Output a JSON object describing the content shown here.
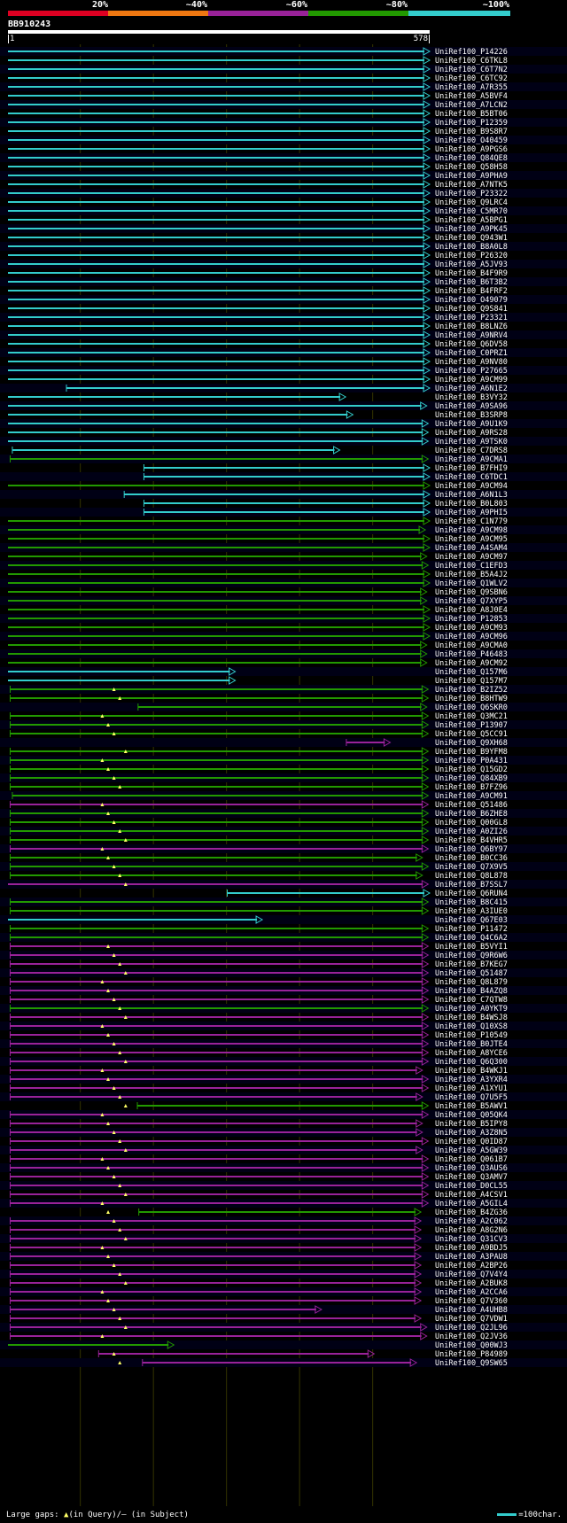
{
  "header": {
    "pct_labels": [
      "20%",
      "~40%",
      "~60%",
      "~80%",
      "~100%"
    ],
    "band_colors": [
      "#dd0022",
      "#ee7711",
      "#992299",
      "#229900",
      "#33cccc"
    ],
    "query_name": "BB910243",
    "ruler_start": "1",
    "ruler_end": "578"
  },
  "footer": {
    "gaps_text": "Large gaps: ",
    "gaps_query": "(in Query)/",
    "gaps_query_symbol": "▲",
    "gaps_subject_symbol": "–",
    "gaps_subject": " (in Subject)",
    "legend_text": "=100char."
  },
  "chart_data": {
    "type": "alignment",
    "query_length": 578,
    "color_by_identity": {
      "~100%": "#33cccc",
      "~80%": "#229900",
      "~60%": "#992299",
      "~40%": "#ee7711",
      "20%": "#dd0022"
    },
    "hits": [
      [
        "UniRef100_P14226",
        1,
        578,
        "c",
        0
      ],
      [
        "UniRef100_C6TKL8",
        1,
        578,
        "c",
        0
      ],
      [
        "UniRef100_C6T7N2",
        1,
        578,
        "c",
        0
      ],
      [
        "UniRef100_C6TC92",
        1,
        578,
        "c",
        0
      ],
      [
        "UniRef100_A7R355",
        1,
        578,
        "c",
        0
      ],
      [
        "UniRef100_A5BVF4",
        1,
        578,
        "c",
        0
      ],
      [
        "UniRef100_A7LCN2",
        1,
        578,
        "c",
        0
      ],
      [
        "UniRef100_B5BT06",
        1,
        578,
        "c",
        0
      ],
      [
        "UniRef100_P12359",
        1,
        578,
        "c",
        0
      ],
      [
        "UniRef100_B9S8R7",
        1,
        578,
        "c",
        0
      ],
      [
        "UniRef100_O40459",
        1,
        578,
        "c",
        0
      ],
      [
        "UniRef100_A9PGS6",
        1,
        578,
        "c",
        0
      ],
      [
        "UniRef100_Q84QE8",
        1,
        578,
        "c",
        0
      ],
      [
        "UniRef100_Q58H58",
        1,
        578,
        "c",
        0
      ],
      [
        "UniRef100_A9PHA9",
        1,
        578,
        "c",
        0
      ],
      [
        "UniRef100_A7NTK5",
        1,
        578,
        "c",
        0
      ],
      [
        "UniRef100_P23322",
        1,
        578,
        "c",
        0
      ],
      [
        "UniRef100_Q9LRC4",
        1,
        578,
        "c",
        0
      ],
      [
        "UniRef100_C5MR70",
        1,
        578,
        "c",
        0
      ],
      [
        "UniRef100_A5BPG1",
        1,
        578,
        "c",
        0
      ],
      [
        "UniRef100_A9PK45",
        1,
        578,
        "c",
        0
      ],
      [
        "UniRef100_Q943W1",
        1,
        578,
        "c",
        0
      ],
      [
        "UniRef100_B8A0L8",
        1,
        578,
        "c",
        0
      ],
      [
        "UniRef100_P26320",
        1,
        578,
        "c",
        0
      ],
      [
        "UniRef100_A5JV93",
        1,
        578,
        "c",
        0
      ],
      [
        "UniRef100_B4F9R9",
        1,
        578,
        "c",
        0
      ],
      [
        "UniRef100_B6T3B2",
        1,
        578,
        "c",
        0
      ],
      [
        "UniRef100_B4FRF2",
        1,
        578,
        "c",
        0
      ],
      [
        "UniRef100_O49079",
        1,
        578,
        "c",
        0
      ],
      [
        "UniRef100_Q9S841",
        1,
        578,
        "c",
        0
      ],
      [
        "UniRef100_P23321",
        1,
        578,
        "c",
        0
      ],
      [
        "UniRef100_B8LNZ6",
        1,
        578,
        "c",
        0
      ],
      [
        "UniRef100_A9NRV4",
        1,
        578,
        "c",
        0
      ],
      [
        "UniRef100_Q6DV58",
        1,
        578,
        "c",
        0
      ],
      [
        "UniRef100_C0PRZ1",
        1,
        578,
        "c",
        0
      ],
      [
        "UniRef100_A9NV80",
        1,
        578,
        "c",
        0
      ],
      [
        "UniRef100_P27665",
        1,
        578,
        "c",
        0
      ],
      [
        "UniRef100_A9CM99",
        1,
        578,
        "c",
        0
      ],
      [
        "UniRef100_A6N1E2",
        81,
        578,
        "c",
        0
      ],
      [
        "UniRef100_B3VY32",
        1,
        463,
        "c",
        0
      ],
      [
        "UniRef100_A9SA96",
        1,
        574,
        "c",
        0
      ],
      [
        "UniRef100_B3SRP8",
        1,
        473,
        "c",
        0
      ],
      [
        "UniRef100_A9U1K9",
        1,
        576,
        "c",
        0
      ],
      [
        "UniRef100_A9RS28",
        1,
        576,
        "c",
        0
      ],
      [
        "UniRef100_A9TSK0",
        1,
        576,
        "c",
        0
      ],
      [
        "UniRef100_C7DRS8",
        7,
        455,
        "c",
        0
      ],
      [
        "UniRef100_A9CMA1",
        4,
        576,
        "g",
        0
      ],
      [
        "UniRef100_B7FHI9",
        187,
        578,
        "c",
        0
      ],
      [
        "UniRef100_C6TDC1",
        187,
        578,
        "c",
        0
      ],
      [
        "UniRef100_A9CM94",
        1,
        578,
        "g",
        0
      ],
      [
        "UniRef100_A6N1L3",
        160,
        578,
        "c",
        0
      ],
      [
        "UniRef100_B0L803",
        187,
        578,
        "c",
        0
      ],
      [
        "UniRef100_A9PHI5",
        187,
        578,
        "c",
        0
      ],
      [
        "UniRef100_C1N779",
        1,
        578,
        "g",
        0
      ],
      [
        "UniRef100_A9CM98",
        1,
        572,
        "g",
        0
      ],
      [
        "UniRef100_A9CM95",
        1,
        578,
        "g",
        0
      ],
      [
        "UniRef100_A4SAM4",
        1,
        578,
        "g",
        0
      ],
      [
        "UniRef100_A9CM97",
        1,
        574,
        "g",
        0
      ],
      [
        "UniRef100_C1EFD3",
        1,
        576,
        "g",
        0
      ],
      [
        "UniRef100_B5A4J2",
        1,
        578,
        "g",
        0
      ],
      [
        "UniRef100_Q1WLV2",
        1,
        578,
        "g",
        0
      ],
      [
        "UniRef100_Q9SBN6",
        1,
        574,
        "g",
        0
      ],
      [
        "UniRef100_Q7XYP5",
        1,
        574,
        "g",
        0
      ],
      [
        "UniRef100_A8J0E4",
        1,
        578,
        "g",
        0
      ],
      [
        "UniRef100_P12853",
        1,
        578,
        "g",
        0
      ],
      [
        "UniRef100_A9CM93",
        1,
        578,
        "g",
        0
      ],
      [
        "UniRef100_A9CM96",
        1,
        578,
        "g",
        0
      ],
      [
        "UniRef100_A9CMA0",
        1,
        574,
        "g",
        0
      ],
      [
        "UniRef100_P46483",
        1,
        574,
        "g",
        0
      ],
      [
        "UniRef100_A9CM92",
        1,
        574,
        "g",
        0
      ],
      [
        "UniRef100_Q157M6",
        1,
        312,
        "c",
        0
      ],
      [
        "UniRef100_Q157M7",
        1,
        312,
        "c",
        0
      ],
      [
        "UniRef100_B2IZ52",
        4,
        576,
        "g",
        1
      ],
      [
        "UniRef100_B8HTW9",
        4,
        576,
        "g",
        1
      ],
      [
        "UniRef100_Q6SKR0",
        179,
        574,
        "g",
        0
      ],
      [
        "UniRef100_Q3MC21",
        4,
        576,
        "g",
        1
      ],
      [
        "UniRef100_P13907",
        4,
        576,
        "g",
        1
      ],
      [
        "UniRef100_Q5CC91",
        4,
        576,
        "g",
        1
      ],
      [
        "UniRef100_Q9XH68",
        464,
        524,
        "m",
        0
      ],
      [
        "UniRef100_B9YFM8",
        4,
        576,
        "g",
        1
      ],
      [
        "UniRef100_P0A431",
        4,
        576,
        "g",
        1
      ],
      [
        "UniRef100_Q15GD2",
        4,
        576,
        "g",
        1
      ],
      [
        "UniRef100_Q84XB9",
        4,
        576,
        "g",
        1
      ],
      [
        "UniRef100_B7FZ96",
        4,
        576,
        "g",
        1
      ],
      [
        "UniRef100_A9CM91",
        7,
        576,
        "g",
        0
      ],
      [
        "UniRef100_Q51486",
        4,
        576,
        "m",
        1
      ],
      [
        "UniRef100_B6ZHE8",
        4,
        576,
        "g",
        1
      ],
      [
        "UniRef100_Q00GL8",
        4,
        576,
        "g",
        1
      ],
      [
        "UniRef100_A0ZI26",
        4,
        576,
        "g",
        1
      ],
      [
        "UniRef100_B4VHR5",
        4,
        576,
        "g",
        1
      ],
      [
        "UniRef100_Q6BY97",
        4,
        576,
        "m",
        1
      ],
      [
        "UniRef100_B0CC36",
        4,
        568,
        "g",
        1
      ],
      [
        "UniRef100_Q7X9V5",
        4,
        576,
        "g",
        1
      ],
      [
        "UniRef100_Q8L878",
        4,
        568,
        "g",
        1
      ],
      [
        "UniRef100_B7SSL7",
        1,
        576,
        "m",
        1
      ],
      [
        "UniRef100_Q6RUN4",
        301,
        578,
        "c",
        0
      ],
      [
        "UniRef100_B8C415",
        4,
        576,
        "g",
        0
      ],
      [
        "UniRef100_A3IUE0",
        4,
        576,
        "g",
        0
      ],
      [
        "UniRef100_Q67E03",
        1,
        349,
        "c",
        0
      ],
      [
        "UniRef100_P11472",
        4,
        576,
        "g",
        0
      ],
      [
        "UniRef100_Q4C6A2",
        4,
        576,
        "g",
        0
      ],
      [
        "UniRef100_B5VYI1",
        4,
        576,
        "m",
        1
      ],
      [
        "UniRef100_Q9R6W6",
        4,
        576,
        "m",
        1
      ],
      [
        "UniRef100_B7KEG7",
        4,
        576,
        "m",
        1
      ],
      [
        "UniRef100_Q51487",
        4,
        576,
        "m",
        1
      ],
      [
        "UniRef100_Q8L879",
        4,
        576,
        "m",
        1
      ],
      [
        "UniRef100_B4AZQ8",
        4,
        576,
        "m",
        1
      ],
      [
        "UniRef100_C7QTW8",
        4,
        576,
        "m",
        1
      ],
      [
        "UniRef100_A0YKT9",
        4,
        576,
        "g",
        1
      ],
      [
        "UniRef100_B4WSJ8",
        4,
        576,
        "m",
        1
      ],
      [
        "UniRef100_Q10XS8",
        4,
        576,
        "m",
        1
      ],
      [
        "UniRef100_P10549",
        4,
        576,
        "m",
        1
      ],
      [
        "UniRef100_B0JTE4",
        4,
        576,
        "m",
        1
      ],
      [
        "UniRef100_A8YCE6",
        4,
        576,
        "m",
        1
      ],
      [
        "UniRef100_Q6Q300",
        4,
        576,
        "m",
        1
      ],
      [
        "UniRef100_B4WKJ1",
        4,
        568,
        "m",
        1
      ],
      [
        "UniRef100_A3YXR4",
        4,
        576,
        "m",
        1
      ],
      [
        "UniRef100_A1XYU1",
        4,
        576,
        "m",
        1
      ],
      [
        "UniRef100_Q7U5F5",
        4,
        568,
        "m",
        1
      ],
      [
        "UniRef100_B5AWV1",
        178,
        576,
        "g",
        1
      ],
      [
        "UniRef100_Q05QK4",
        4,
        576,
        "m",
        1
      ],
      [
        "UniRef100_B5IPY8",
        4,
        568,
        "m",
        1
      ],
      [
        "UniRef100_A3Z8N5",
        4,
        568,
        "m",
        1
      ],
      [
        "UniRef100_Q0ID87",
        4,
        576,
        "m",
        1
      ],
      [
        "UniRef100_A5GW39",
        4,
        568,
        "m",
        1
      ],
      [
        "UniRef100_Q061B7",
        4,
        576,
        "m",
        1
      ],
      [
        "UniRef100_Q3AUS6",
        4,
        576,
        "m",
        1
      ],
      [
        "UniRef100_Q3AMV7",
        4,
        576,
        "m",
        1
      ],
      [
        "UniRef100_D0CL55",
        4,
        576,
        "m",
        1
      ],
      [
        "UniRef100_A4CSV1",
        4,
        576,
        "m",
        1
      ],
      [
        "UniRef100_A5GIL4",
        4,
        576,
        "m",
        1
      ],
      [
        "UniRef100_B4ZG36",
        180,
        566,
        "g",
        1
      ],
      [
        "UniRef100_A2C062",
        4,
        566,
        "m",
        1
      ],
      [
        "UniRef100_A8G2N6",
        4,
        566,
        "m",
        1
      ],
      [
        "UniRef100_Q31CV3",
        4,
        566,
        "m",
        1
      ],
      [
        "UniRef100_A9BDJ5",
        4,
        566,
        "m",
        1
      ],
      [
        "UniRef100_A3PAU8",
        4,
        566,
        "m",
        1
      ],
      [
        "UniRef100_A2BP26",
        4,
        566,
        "m",
        1
      ],
      [
        "UniRef100_Q7V4Y4",
        4,
        566,
        "m",
        1
      ],
      [
        "UniRef100_A2BUK8",
        4,
        566,
        "m",
        1
      ],
      [
        "UniRef100_A2CCA6",
        4,
        566,
        "m",
        1
      ],
      [
        "UniRef100_Q7V360",
        4,
        566,
        "m",
        1
      ],
      [
        "UniRef100_A4UHB8",
        4,
        430,
        "m",
        1
      ],
      [
        "UniRef100_Q7VDW1",
        4,
        566,
        "m",
        1
      ],
      [
        "UniRef100_Q2JL96",
        4,
        574,
        "m",
        1
      ],
      [
        "UniRef100_Q2JV36",
        4,
        574,
        "m",
        1
      ],
      [
        "UniRef100_Q00WJ3",
        1,
        228,
        "g",
        0
      ],
      [
        "UniRef100_P84989",
        125,
        502,
        "m",
        1
      ],
      [
        "UniRef100_Q9SW65",
        185,
        560,
        "m",
        1
      ]
    ]
  }
}
